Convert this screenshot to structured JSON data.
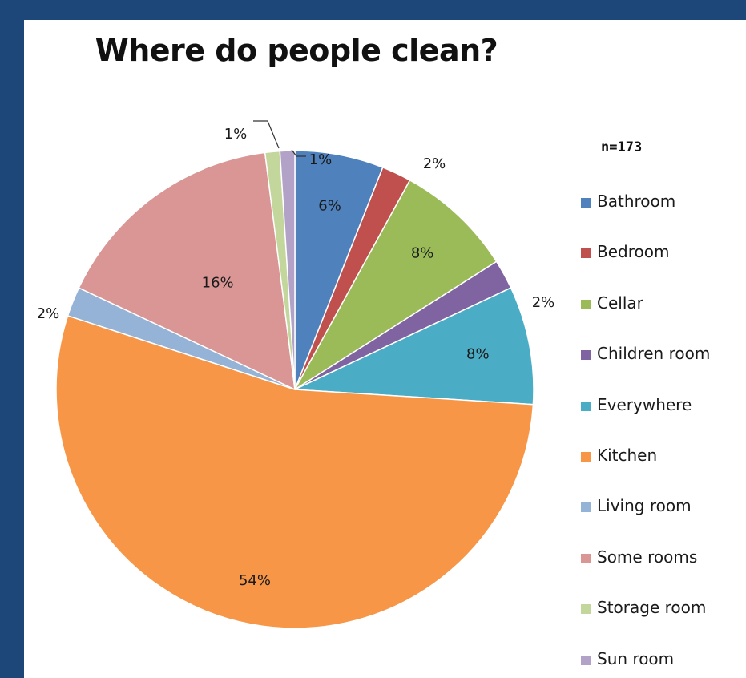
{
  "chart_data": {
    "type": "pie",
    "title": "Where do people clean?",
    "annotation": "n=173",
    "categories": [
      "Bathroom",
      "Bedroom",
      "Cellar",
      "Children room",
      "Everywhere",
      "Kitchen",
      "Living room",
      "Some rooms",
      "Storage room",
      "Sun room"
    ],
    "values": [
      6,
      2,
      8,
      2,
      8,
      54,
      2,
      16,
      1,
      1
    ],
    "labels": [
      "6%",
      "2%",
      "8%",
      "2%",
      "8%",
      "54%",
      "2%",
      "16%",
      "1%",
      "1%"
    ],
    "colors": [
      "#4f81bd",
      "#c0504d",
      "#9bbb59",
      "#8064a2",
      "#4bacc6",
      "#f79646",
      "#95b3d7",
      "#d99694",
      "#c3d69b",
      "#b2a2c7"
    ],
    "legend_position": "right",
    "legend_labels": [
      "Bathroom",
      "Bedroom",
      "Cellar",
      "Children room",
      "Everywhere",
      "Kitchen",
      "Living room",
      "Some rooms",
      "Storage room",
      "Sun room"
    ]
  }
}
